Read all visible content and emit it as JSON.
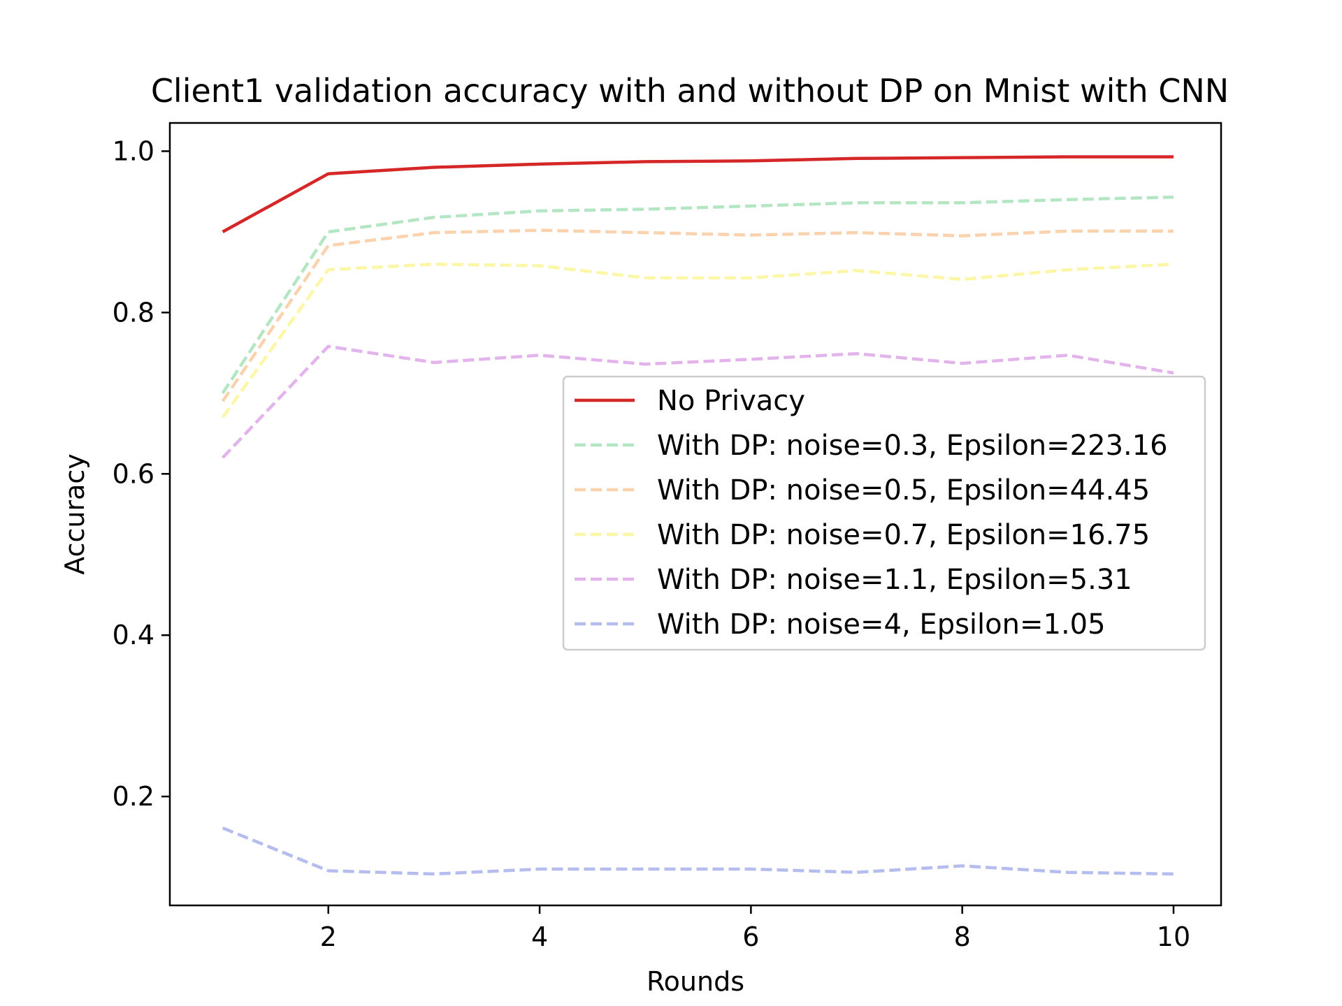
{
  "chart_data": {
    "type": "line",
    "title": "Client1 validation accuracy with and without DP on Mnist with CNN",
    "xlabel": "Rounds",
    "ylabel": "Accuracy",
    "xlim": [
      0.5,
      10.45
    ],
    "ylim": [
      0.065,
      1.035
    ],
    "xticks": [
      2,
      4,
      6,
      8,
      10
    ],
    "xtick_labels": [
      "2",
      "4",
      "6",
      "8",
      "10"
    ],
    "yticks": [
      0.2,
      0.4,
      0.6,
      0.8,
      1.0
    ],
    "ytick_labels": [
      "0.2",
      "0.4",
      "0.6",
      "0.8",
      "1.0"
    ],
    "grid": false,
    "legend_position": "center-right",
    "x": [
      1,
      2,
      3,
      4,
      5,
      6,
      7,
      8,
      9,
      10
    ],
    "series": [
      {
        "name": "No Privacy",
        "color": "#d62728",
        "style": "solid",
        "values": [
          0.9,
          0.972,
          0.98,
          0.984,
          0.987,
          0.988,
          0.991,
          0.992,
          0.993,
          0.993
        ]
      },
      {
        "name": "With DP: noise=0.3, Epsilon=223.16",
        "color": "#b3e6c3",
        "style": "dashed",
        "values": [
          0.7,
          0.9,
          0.918,
          0.926,
          0.928,
          0.932,
          0.936,
          0.936,
          0.94,
          0.943
        ]
      },
      {
        "name": "With DP: noise=0.5, Epsilon=44.45",
        "color": "#fad2ad",
        "style": "dashed",
        "values": [
          0.69,
          0.883,
          0.899,
          0.902,
          0.899,
          0.896,
          0.899,
          0.895,
          0.901,
          0.901
        ]
      },
      {
        "name": "With DP: noise=0.7, Epsilon=16.75",
        "color": "#fcf6a7",
        "style": "dashed",
        "values": [
          0.67,
          0.853,
          0.86,
          0.858,
          0.843,
          0.843,
          0.852,
          0.841,
          0.853,
          0.86
        ]
      },
      {
        "name": "With DP: noise=1.1, Epsilon=5.31",
        "color": "#e3b4ec",
        "style": "dashed",
        "values": [
          0.62,
          0.758,
          0.738,
          0.747,
          0.736,
          0.742,
          0.749,
          0.737,
          0.747,
          0.725
        ]
      },
      {
        "name": "With DP: noise=4, Epsilon=1.05",
        "color": "#b5bcee",
        "style": "dashed",
        "values": [
          0.161,
          0.108,
          0.104,
          0.11,
          0.11,
          0.11,
          0.106,
          0.114,
          0.106,
          0.104
        ]
      }
    ]
  }
}
